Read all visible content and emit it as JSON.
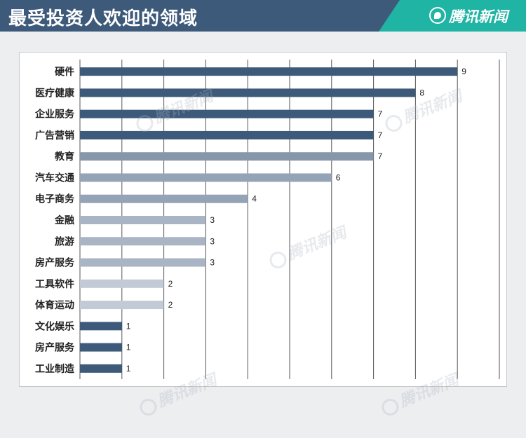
{
  "header": {
    "title": "最受投资人欢迎的领域"
  },
  "brand": {
    "name": "腾讯新闻",
    "watermark": "腾讯新闻",
    "logo_icon": "tencent-news-logo-icon"
  },
  "colors": {
    "header_bg": "#3d5a7a",
    "brand_bg": "#20b4a4",
    "grid": "#555555"
  },
  "chart_data": {
    "type": "bar",
    "orientation": "horizontal",
    "categories": [
      "硬件",
      "医疗健康",
      "企业服务",
      "广告营销",
      "教育",
      "汽车交通",
      "电子商务",
      "金融",
      "旅游",
      "房产服务",
      "工具软件",
      "体育运动",
      "文化娱乐",
      "房产服务",
      "工业制造"
    ],
    "values": [
      9,
      8,
      7,
      7,
      7,
      6,
      4,
      3,
      3,
      3,
      2,
      2,
      1,
      1,
      1
    ],
    "bar_colors": [
      "#3d5a7a",
      "#3d5a7a",
      "#3d5a7a",
      "#3d5a7a",
      "#8797ab",
      "#94a3b5",
      "#94a3b5",
      "#a9b5c4",
      "#a9b5c4",
      "#a9b5c4",
      "#c2cbd5",
      "#c2cbd5",
      "#3d5a7a",
      "#3d5a7a",
      "#3d5a7a"
    ],
    "xlim": [
      0,
      10
    ],
    "grid": true,
    "data_labels": true
  }
}
